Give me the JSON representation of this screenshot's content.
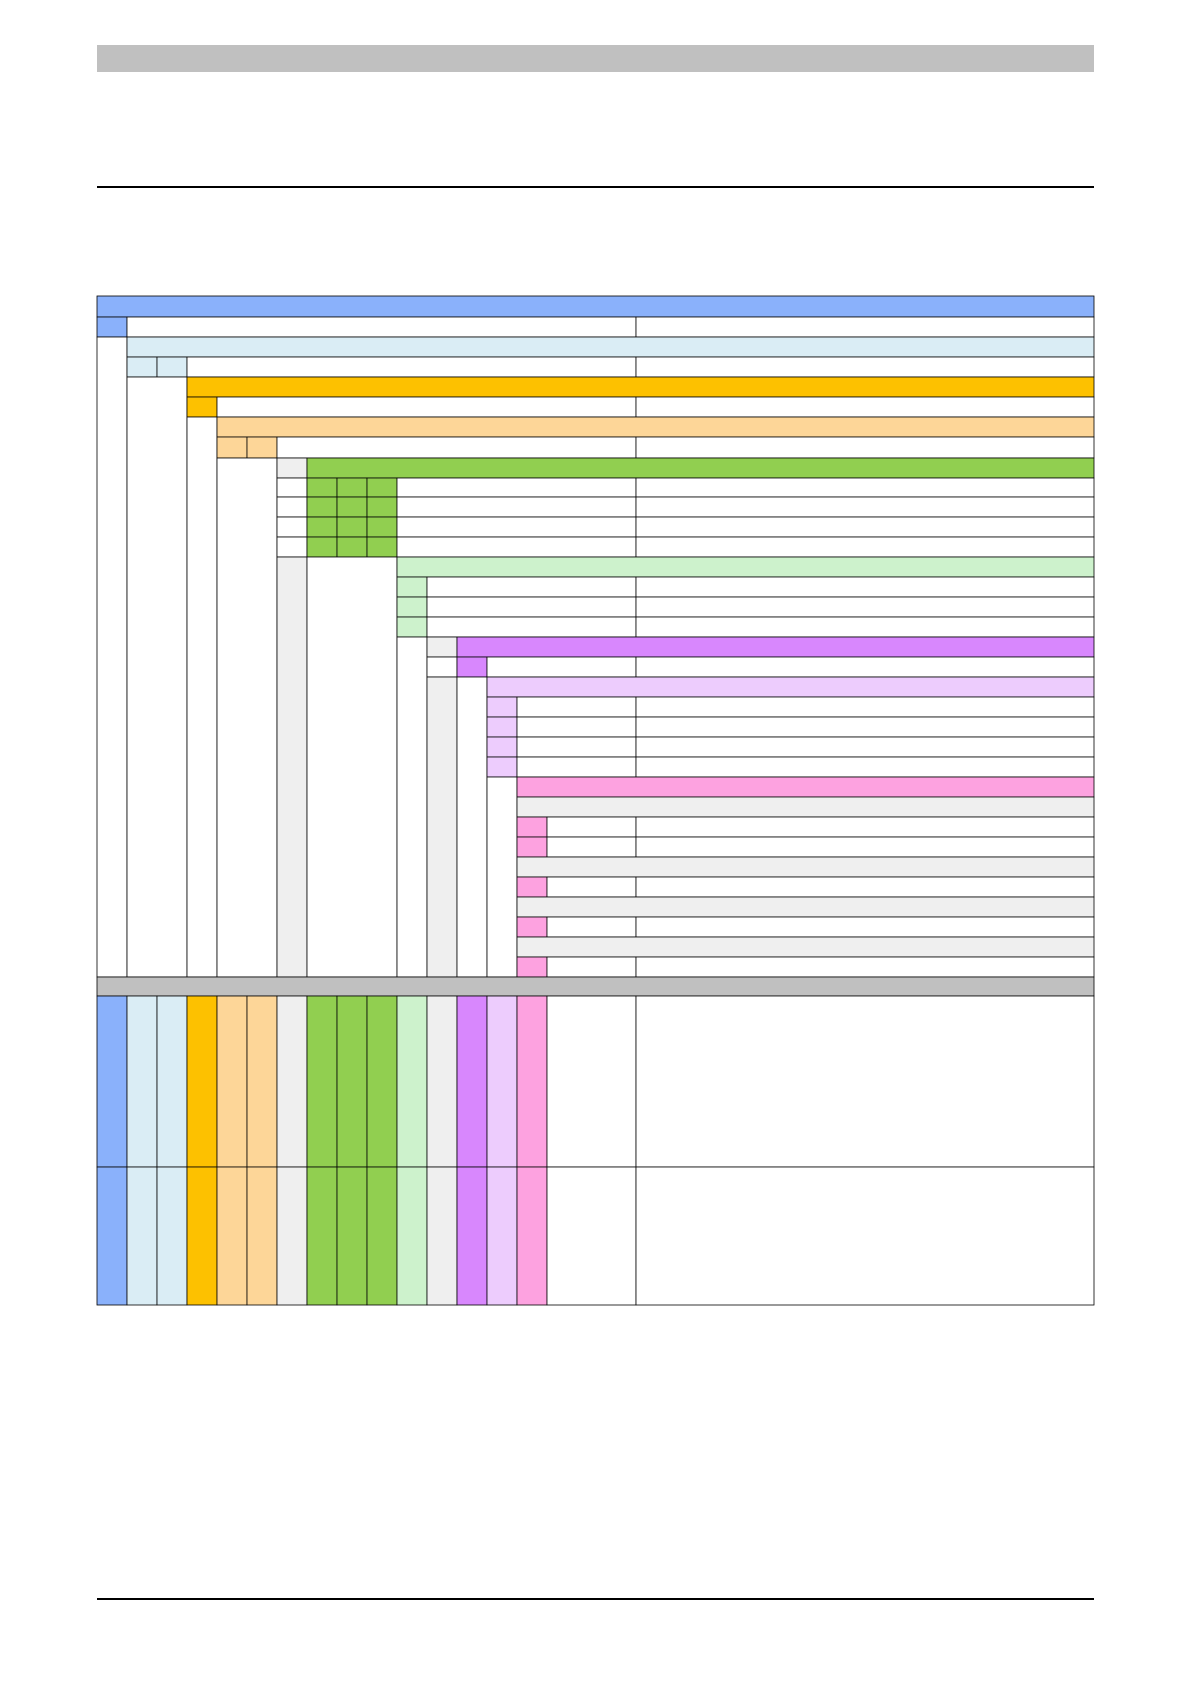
{
  "page": {
    "header_bar_color": "#c0c0c0",
    "rule_color": "#000000"
  },
  "legend": {
    "colors": {
      "blue": "#8ab1fb",
      "light_blue": "#daedf5",
      "orange": "#fdc100",
      "light_orange": "#fdd698",
      "light_gray": "#efefef",
      "green": "#91cf50",
      "light_green": "#cdf2cc",
      "purple": "#d887fd",
      "light_purple": "#edccfd",
      "pink": "#fda2e0",
      "divider_gray": "#c0c0c0",
      "white": "#ffffff",
      "border": "#000000"
    }
  }
}
